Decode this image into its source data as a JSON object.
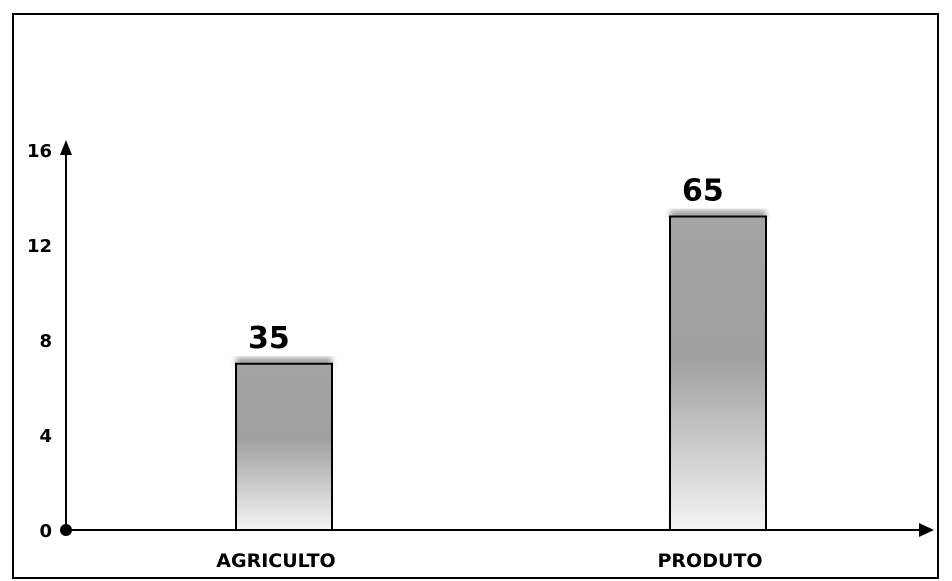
{
  "chart_data": {
    "type": "bar",
    "categories": [
      "AGRICULTO",
      "PRODUTO"
    ],
    "values": [
      7,
      13.2
    ],
    "data_labels": [
      "35",
      "65"
    ],
    "yticks": [
      "0",
      "4",
      "8",
      "12",
      "16"
    ],
    "ylim": [
      0,
      16
    ],
    "title": "",
    "xlabel": "",
    "ylabel": "",
    "grid": false,
    "legend": "none",
    "colors": {
      "bar_top": "#a0a0a0",
      "bar_bottom": "#f4f4f4",
      "axis": "#000000"
    }
  }
}
